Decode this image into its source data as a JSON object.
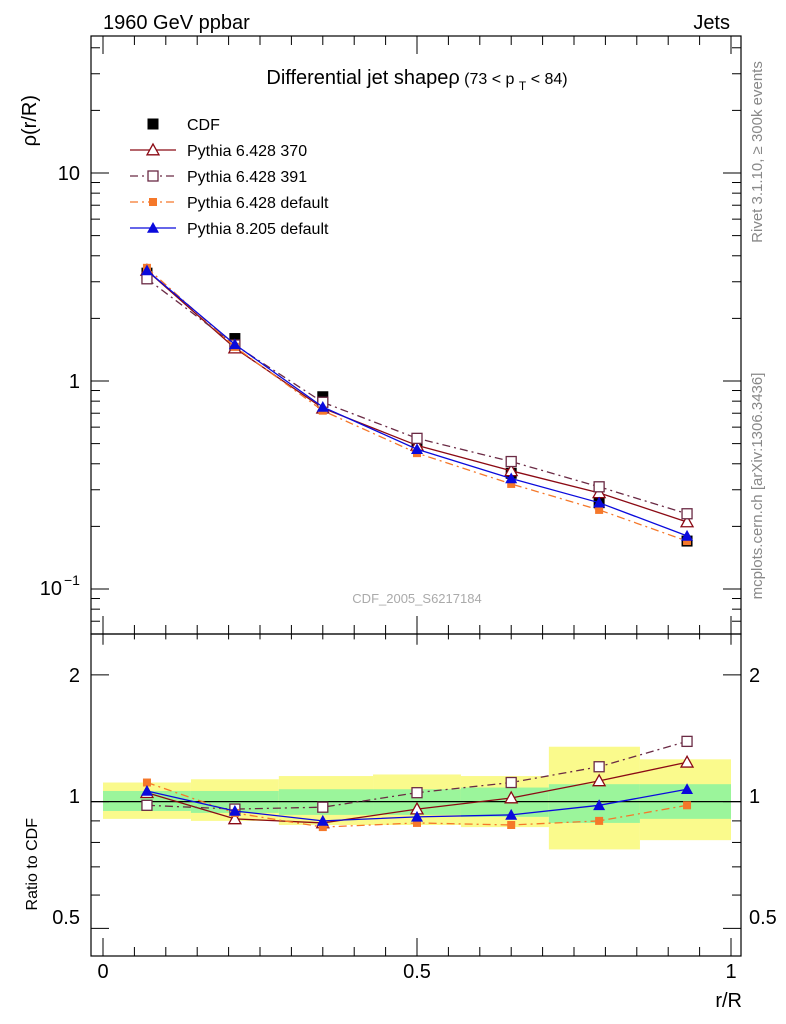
{
  "header": {
    "left": "1960 GeV ppbar",
    "right": "Jets"
  },
  "side_labels": {
    "rivet": "Rivet 3.1.10, ≥ 300k events",
    "mcplots": "mcplots.cern.ch [arXiv:1306.3436]"
  },
  "colors": {
    "cdf": "#000000",
    "p6_370": "#8b0a14",
    "p6_391": "#6a2a44",
    "p6_default": "#f5782a",
    "p8_default": "#0a0adc",
    "band_inner": "#9bf59b",
    "band_outer": "#fafa8c"
  },
  "chart_data": [
    {
      "id": "main",
      "type": "scatter",
      "title_main": "Differential jet shapeρ",
      "title_sub": "(73 < p",
      "title_sub_index": "T",
      "title_sub_end": " < 84)",
      "ylabel": "ρ(r/R)",
      "yscale": "log",
      "ylim": [
        0.063,
        50
      ],
      "xlim": [
        0,
        1
      ],
      "y_tick_labels": [
        {
          "value": 10,
          "label": "10"
        },
        {
          "value": 1,
          "label": "1"
        },
        {
          "value": 0.1,
          "label": "10",
          "sup": "−1"
        }
      ],
      "watermark": "CDF_2005_S6217184",
      "x": [
        0.07,
        0.21,
        0.35,
        0.5,
        0.65,
        0.79,
        0.93
      ],
      "series": [
        {
          "key": "cdf",
          "name": "CDF",
          "marker": "square-filled",
          "line": "none",
          "values": [
            3.3,
            1.6,
            0.84,
            0.51,
            0.36,
            0.26,
            0.17
          ],
          "errors": [
            0.1,
            0.05,
            0.025,
            0.015,
            0.012,
            0.01,
            0.008
          ]
        },
        {
          "key": "p6_370",
          "name": "Pythia 6.428 370",
          "marker": "triangle-open",
          "line": "solid",
          "values": [
            3.4,
            1.44,
            0.74,
            0.49,
            0.37,
            0.29,
            0.21
          ]
        },
        {
          "key": "p6_391",
          "name": "Pythia 6.428 391",
          "marker": "square-open",
          "line": "dashdot",
          "values": [
            3.1,
            1.49,
            0.79,
            0.53,
            0.41,
            0.31,
            0.23
          ]
        },
        {
          "key": "p6_default",
          "name": "Pythia 6.428 default",
          "marker": "square-filled-small",
          "line": "dashdot",
          "values": [
            3.5,
            1.46,
            0.72,
            0.45,
            0.32,
            0.24,
            0.17
          ]
        },
        {
          "key": "p8_default",
          "name": "Pythia 8.205 default",
          "marker": "triangle-filled",
          "line": "solid",
          "values": [
            3.4,
            1.5,
            0.75,
            0.47,
            0.34,
            0.26,
            0.18
          ]
        }
      ]
    },
    {
      "id": "ratio",
      "type": "line",
      "ylabel": "Ratio to CDF",
      "xlabel": "r/R",
      "yscale": "log",
      "ylim": [
        0.43,
        2.5
      ],
      "xlim": [
        0,
        1
      ],
      "y_tick_labels": [
        {
          "value": 2,
          "label": "2"
        },
        {
          "value": 1,
          "label": "1"
        },
        {
          "value": 0.5,
          "label": "0.5"
        }
      ],
      "x_tick_labels": [
        {
          "value": 0,
          "label": "0"
        },
        {
          "value": 0.5,
          "label": "0.5"
        },
        {
          "value": 1,
          "label": "1"
        }
      ],
      "x": [
        0.07,
        0.21,
        0.35,
        0.5,
        0.65,
        0.79,
        0.93
      ],
      "bins": [
        {
          "lo": 0.0,
          "hi": 0.14,
          "inner": [
            0.95,
            1.06
          ],
          "outer": [
            0.91,
            1.11
          ]
        },
        {
          "lo": 0.14,
          "hi": 0.28,
          "inner": [
            0.94,
            1.06
          ],
          "outer": [
            0.9,
            1.13
          ]
        },
        {
          "lo": 0.28,
          "hi": 0.43,
          "inner": [
            0.93,
            1.07
          ],
          "outer": [
            0.88,
            1.15
          ]
        },
        {
          "lo": 0.43,
          "hi": 0.57,
          "inner": [
            0.93,
            1.07
          ],
          "outer": [
            0.88,
            1.16
          ]
        },
        {
          "lo": 0.57,
          "hi": 0.71,
          "inner": [
            0.92,
            1.08
          ],
          "outer": [
            0.87,
            1.15
          ]
        },
        {
          "lo": 0.71,
          "hi": 0.855,
          "inner": [
            0.89,
            1.1
          ],
          "outer": [
            0.77,
            1.35
          ]
        },
        {
          "lo": 0.855,
          "hi": 1.0,
          "inner": [
            0.91,
            1.1
          ],
          "outer": [
            0.81,
            1.26
          ]
        }
      ],
      "series": [
        {
          "key": "p6_370",
          "marker": "triangle-open",
          "line": "solid",
          "values": [
            1.05,
            0.91,
            0.89,
            0.96,
            1.02,
            1.12,
            1.24
          ]
        },
        {
          "key": "p6_391",
          "marker": "square-open",
          "line": "dashdot",
          "values": [
            0.98,
            0.96,
            0.97,
            1.05,
            1.11,
            1.21,
            1.39
          ]
        },
        {
          "key": "p6_default",
          "marker": "square-filled-small",
          "line": "dashdot",
          "values": [
            1.11,
            0.94,
            0.87,
            0.89,
            0.88,
            0.9,
            0.98
          ]
        },
        {
          "key": "p8_default",
          "marker": "triangle-filled",
          "line": "solid",
          "values": [
            1.06,
            0.95,
            0.9,
            0.92,
            0.93,
            0.98,
            1.07
          ]
        }
      ]
    }
  ]
}
